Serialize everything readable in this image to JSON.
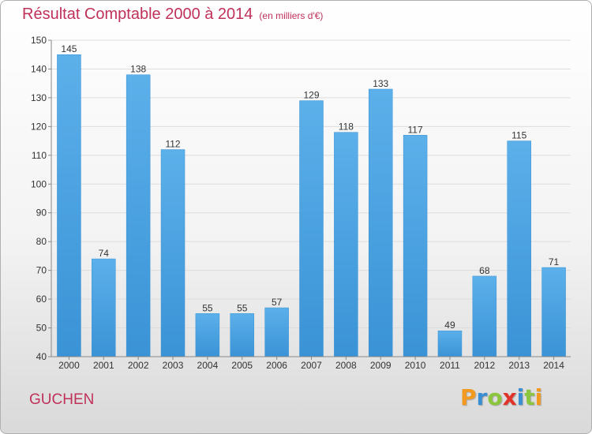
{
  "chart_data": {
    "type": "bar",
    "title": "Résultat Comptable 2000 à 2014",
    "subtitle": "(en milliers d'€)",
    "categories": [
      "2000",
      "2001",
      "2002",
      "2003",
      "2004",
      "2005",
      "2006",
      "2007",
      "2008",
      "2009",
      "2010",
      "2011",
      "2012",
      "2013",
      "2014"
    ],
    "values": [
      145,
      74,
      138,
      112,
      55,
      55,
      57,
      129,
      118,
      133,
      117,
      49,
      68,
      115,
      71
    ],
    "ylim": [
      40,
      150
    ],
    "yticks": [
      40,
      50,
      60,
      70,
      80,
      90,
      100,
      110,
      120,
      130,
      140,
      150
    ],
    "xlabel": "",
    "ylabel": "",
    "grid": true,
    "bar_color": "#3a93d6",
    "bar_color_light": "#5cb0ea"
  },
  "footer": {
    "town": "GUCHEN",
    "logo_letters": [
      {
        "ch": "P",
        "color": "#f29a1f"
      },
      {
        "ch": "r",
        "color": "#3a8fd4"
      },
      {
        "ch": "o",
        "color": "#8cc63f"
      },
      {
        "ch": "x",
        "color": "#e2332a"
      },
      {
        "ch": "i",
        "color": "#3a8fd4"
      },
      {
        "ch": "t",
        "color": "#8cc63f"
      },
      {
        "ch": "i",
        "color": "#f29a1f"
      }
    ]
  }
}
